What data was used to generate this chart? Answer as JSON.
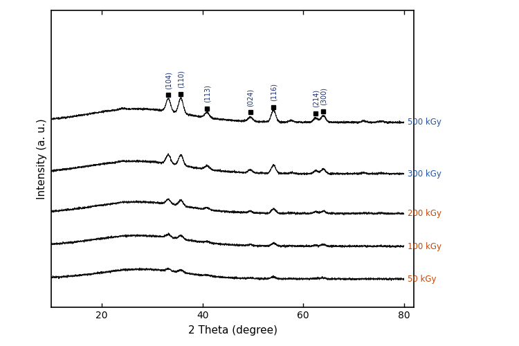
{
  "title": "",
  "xlabel": "2 Theta (degree)",
  "ylabel": "Intensity (a. u.)",
  "xlim": [
    10,
    82
  ],
  "x_ticks": [
    20,
    40,
    60,
    80
  ],
  "labels": [
    "500 kGy",
    "300 kGy",
    "200 kGy",
    "100 kGy",
    "50 kGy"
  ],
  "label_colors": [
    "#2255aa",
    "#2255aa",
    "#cc4400",
    "#cc4400",
    "#cc4400"
  ],
  "offsets": [
    3.8,
    2.7,
    1.85,
    1.15,
    0.45
  ],
  "miller_indices": [
    "(104)",
    "(110)",
    "(113)",
    "(024)",
    "(116)",
    "(214)",
    "(300)"
  ],
  "miller_positions": [
    33.2,
    35.7,
    40.9,
    49.5,
    54.1,
    62.5,
    64.0
  ],
  "background_color": "#ffffff",
  "line_color": "#111111",
  "box": true
}
